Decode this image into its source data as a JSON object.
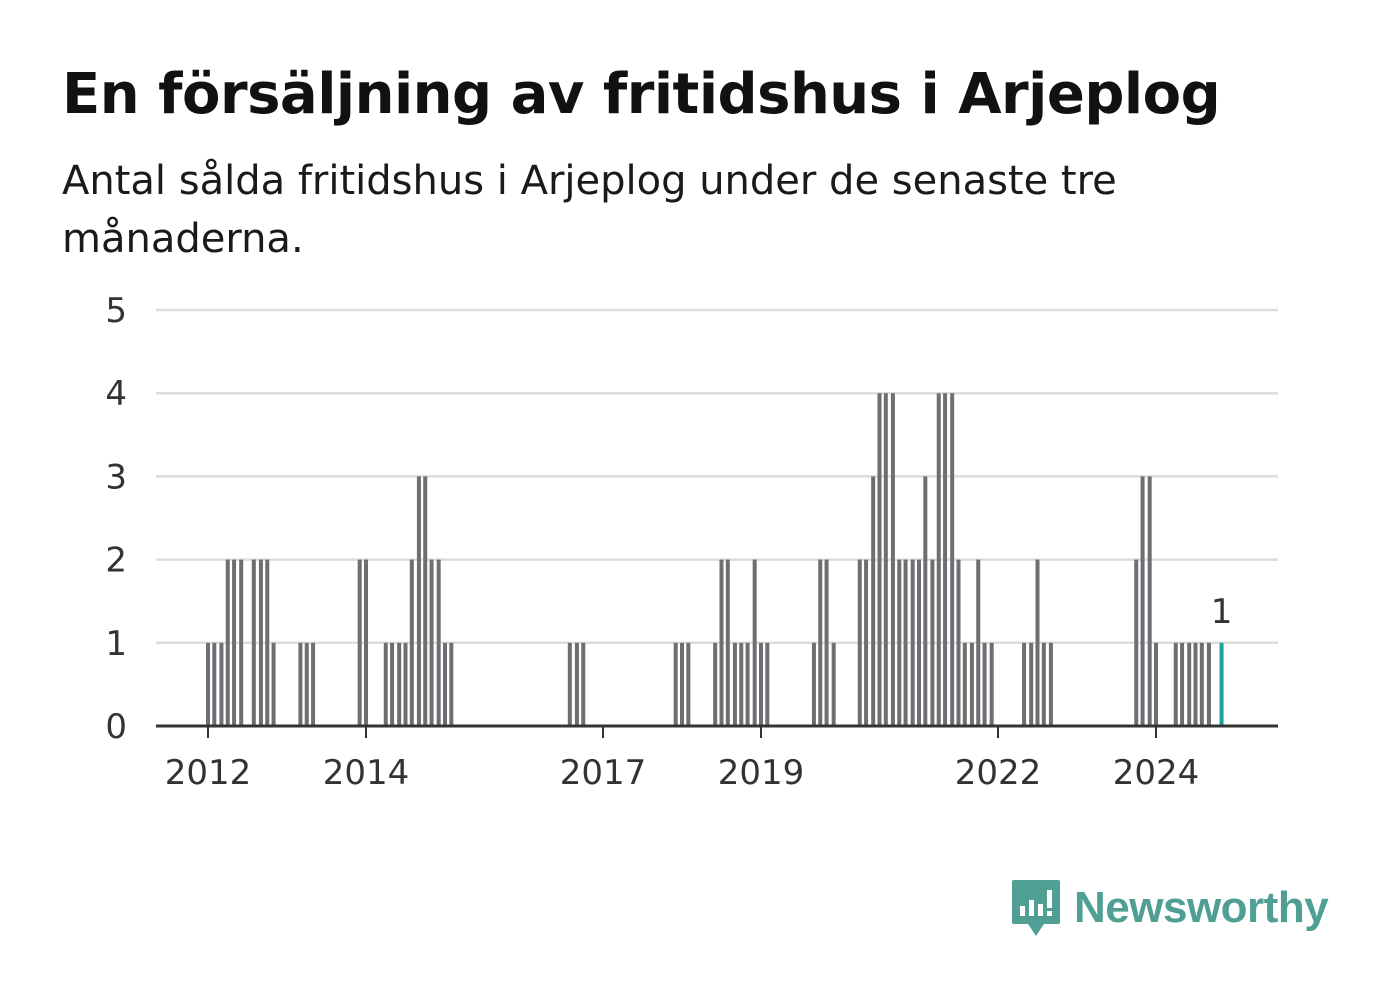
{
  "title": "En försäljning av fritidshus i Arjeplog",
  "subtitle": "Antal sålda fritidshus i Arjeplog under de senaste tre månaderna.",
  "logo": {
    "text": "Newsworthy",
    "icon": "newsworthy-chat-bars-icon"
  },
  "colors": {
    "bar": "#6e6e73",
    "highlight": "#1aa39a",
    "grid": "#dddddd",
    "axis": "#333333",
    "brand": "#4f9f95"
  },
  "chart_data": {
    "type": "bar",
    "title": "En försäljning av fritidshus i Arjeplog",
    "subtitle": "Antal sålda fritidshus i Arjeplog under de senaste tre månaderna.",
    "xlabel": "",
    "ylabel": "",
    "ylim": [
      0,
      5
    ],
    "yticks": [
      0,
      1,
      2,
      3,
      4,
      5
    ],
    "xticks": [
      "2012",
      "2014",
      "2017",
      "2019",
      "2022",
      "2024"
    ],
    "xrange": [
      2011.4,
      2025.2
    ],
    "grid": true,
    "legend": "none",
    "x": [
      2012.0,
      2012.08,
      2012.17,
      2012.25,
      2012.33,
      2012.42,
      2012.58,
      2012.67,
      2012.75,
      2012.83,
      2013.17,
      2013.25,
      2013.33,
      2013.92,
      2014.0,
      2014.25,
      2014.33,
      2014.42,
      2014.5,
      2014.58,
      2014.67,
      2014.75,
      2014.83,
      2014.92,
      2015.0,
      2015.08,
      2016.58,
      2016.67,
      2016.75,
      2017.92,
      2018.0,
      2018.08,
      2018.42,
      2018.5,
      2018.58,
      2018.67,
      2018.75,
      2018.83,
      2018.92,
      2019.0,
      2019.08,
      2019.67,
      2019.75,
      2019.83,
      2019.92,
      2020.25,
      2020.33,
      2020.42,
      2020.5,
      2020.58,
      2020.67,
      2020.75,
      2020.83,
      2020.92,
      2021.0,
      2021.08,
      2021.17,
      2021.25,
      2021.33,
      2021.42,
      2021.5,
      2021.58,
      2021.67,
      2021.75,
      2021.83,
      2021.92,
      2022.33,
      2022.42,
      2022.5,
      2022.58,
      2022.67,
      2023.75,
      2023.83,
      2023.92,
      2024.0,
      2024.25,
      2024.33,
      2024.42,
      2024.5,
      2024.58,
      2024.67,
      2024.83
    ],
    "values": [
      1,
      1,
      1,
      2,
      2,
      2,
      2,
      2,
      2,
      1,
      1,
      1,
      1,
      2,
      2,
      1,
      1,
      1,
      1,
      2,
      3,
      3,
      2,
      2,
      1,
      1,
      1,
      1,
      1,
      1,
      1,
      1,
      1,
      2,
      2,
      1,
      1,
      1,
      2,
      1,
      1,
      1,
      2,
      2,
      1,
      2,
      2,
      3,
      4,
      4,
      4,
      2,
      2,
      2,
      2,
      3,
      2,
      4,
      4,
      4,
      2,
      1,
      1,
      2,
      1,
      1,
      1,
      1,
      2,
      1,
      1,
      2,
      3,
      3,
      1,
      1,
      1,
      1,
      1,
      1,
      1,
      1
    ],
    "highlight_index": 81,
    "annotation": {
      "label": "1"
    }
  }
}
